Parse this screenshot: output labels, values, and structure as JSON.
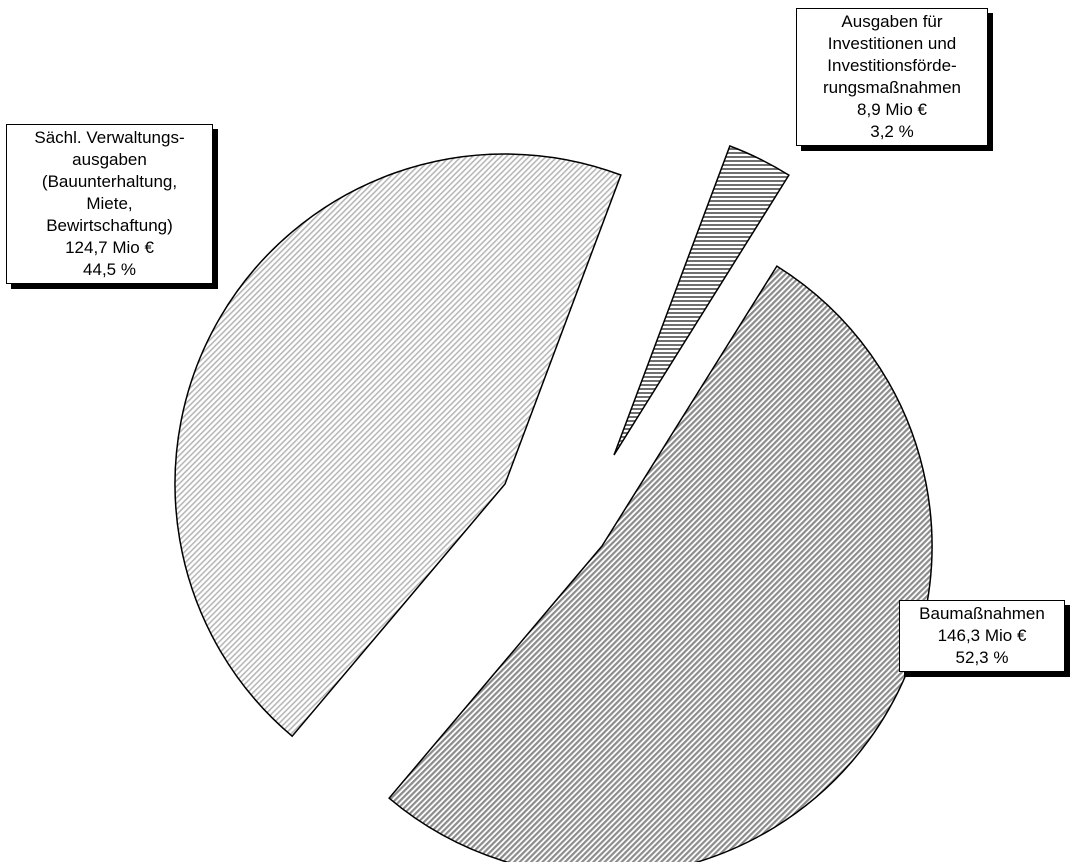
{
  "chart_data": {
    "type": "pie",
    "title": "",
    "exploded": true,
    "slices": [
      {
        "key": "bau",
        "label_lines": [
          "Baumaßnahmen"
        ],
        "amount": "146,3 Mio €",
        "percent_text": "52,3 %",
        "value": 146.3,
        "percent": 52.3,
        "pattern": "diag-dense",
        "fill": "#9a9a9a"
      },
      {
        "key": "verw",
        "label_lines": [
          "Sächl. Verwaltungs-",
          "ausgaben",
          "(Bauunterhaltung,",
          "Miete,",
          "Bewirtschaftung)"
        ],
        "amount": "124,7 Mio €",
        "percent_text": "44,5 %",
        "value": 124.7,
        "percent": 44.5,
        "pattern": "diag-light",
        "fill": "#d0d0d0"
      },
      {
        "key": "invest",
        "label_lines": [
          "Ausgaben für",
          "Investitionen und",
          "Investitionsförde-",
          "rungsmaßnahmen"
        ],
        "amount": "8,9 Mio €",
        "percent_text": "3,2 %",
        "value": 8.9,
        "percent": 3.2,
        "pattern": "horizontal",
        "fill": "#8a8a8a"
      }
    ]
  }
}
